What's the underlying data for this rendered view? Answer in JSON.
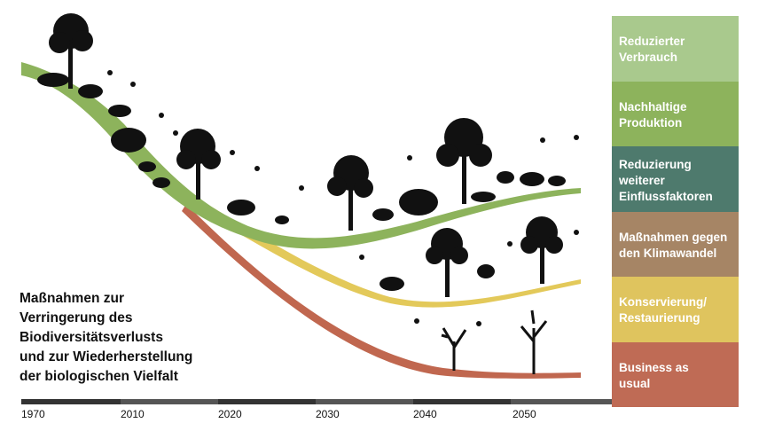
{
  "title_lines": [
    "Maßnahmen zur",
    "Verringerung des",
    "Biodiversitätsverlusts",
    "und zur Wiederherstellung",
    "der biologischen Vielfalt"
  ],
  "legend": [
    {
      "lines": [
        "Reduzierter",
        "Verbrauch"
      ],
      "color": "#a9c98d"
    },
    {
      "lines": [
        "Nachhaltige",
        "Produktion"
      ],
      "color": "#8db35c"
    },
    {
      "lines": [
        "Reduzierung",
        "weiterer",
        "Einflussfaktoren"
      ],
      "color": "#4e7a6d"
    },
    {
      "lines": [
        "Maßnahmen gegen",
        "den Klimawandel"
      ],
      "color": "#a68565"
    },
    {
      "lines": [
        "Konservierung/",
        "Restaurierung"
      ],
      "color": "#dfc45e"
    },
    {
      "lines": [
        "Business as",
        "usual"
      ],
      "color": "#bf6b55"
    }
  ],
  "years": [
    "1970",
    "2010",
    "2020",
    "2030",
    "2040",
    "2050"
  ],
  "colors": {
    "green": "#8db35c",
    "yellow": "#e3c95a",
    "red": "#c0674f",
    "silhouette": "#111111"
  }
}
